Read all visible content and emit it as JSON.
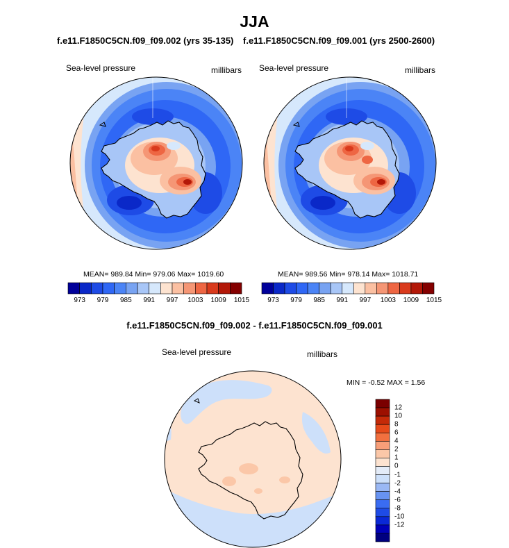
{
  "title": "JJA",
  "colors": {
    "bar13": [
      "#00009a",
      "#0a28c8",
      "#1e4be6",
      "#2f67f5",
      "#4b84f6",
      "#78a3f2",
      "#a8c6f7",
      "#d6e8fc",
      "#fde3d0",
      "#fbc0a2",
      "#f59675",
      "#ee6643",
      "#d93a1c",
      "#b31808",
      "#840000"
    ],
    "diff": [
      "#00007f",
      "#0000b8",
      "#0a28d6",
      "#1e4be6",
      "#3a6cf2",
      "#6793f2",
      "#9ab8f4",
      "#cde0fa",
      "#e4ecf8",
      "#fde3d0",
      "#fbc7a8",
      "#f79e78",
      "#f2703f",
      "#e64a1a",
      "#c42a08",
      "#9c1000",
      "#7a0000"
    ],
    "land": "#000000"
  },
  "panels": [
    {
      "title": "f.e11.F1850C5CN.f09_f09.002 (yrs 35-135)",
      "left_label": "Sea-level pressure",
      "right_label": "millibars",
      "stats": "MEAN= 989.84  Min= 979.06  Max= 1019.60"
    },
    {
      "title": "f.e11.F1850C5CN.f09_f09.001 (yrs 2500-2600)",
      "left_label": "Sea-level pressure",
      "right_label": "millibars",
      "stats": "MEAN= 989.56  Min= 978.14  Max= 1018.71"
    }
  ],
  "colorbar_ticks": [
    "973",
    "979",
    "985",
    "991",
    "997",
    "1003",
    "1009",
    "1015"
  ],
  "diff": {
    "title": "f.e11.F1850C5CN.f09_f09.002 - f.e11.F1850C5CN.f09_f09.001",
    "left_label": "Sea-level pressure",
    "right_label": "millibars",
    "minmax": "MIN =  -0.52 MAX =   1.56",
    "colorbar_labels": [
      "12",
      "10",
      "8",
      "6",
      "4",
      "2",
      "1",
      "0",
      "-1",
      "-2",
      "-4",
      "-6",
      "-8",
      "-10",
      "-12"
    ]
  }
}
